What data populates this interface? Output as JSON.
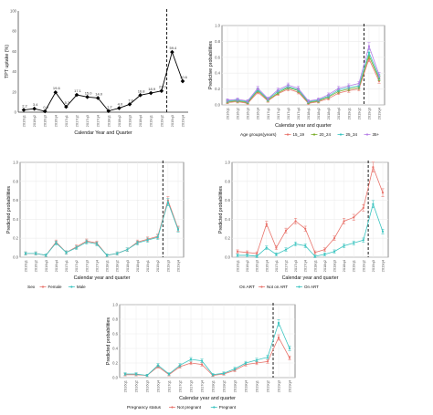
{
  "colors": {
    "black": "#000000",
    "red": "#e8736b",
    "green": "#7aad2a",
    "cyan": "#3ac4c0",
    "purple": "#b57ee6",
    "grid": "#ececec"
  },
  "chart_data": [
    {
      "type": "line",
      "xlabel": "Calendar Year and Quarter",
      "ylabel": "TPT uptake (%)",
      "ylim": [
        0,
        100
      ],
      "yticks": [
        "0",
        "20",
        "40",
        "60",
        "80",
        "100"
      ],
      "categories": [
        "2016q1",
        "2016q2",
        "2016q3",
        "2016q4",
        "2017q1",
        "2017q2",
        "2017q3",
        "2017q4",
        "2018q1",
        "2018q2",
        "2018q3",
        "2018q4",
        "2019q1",
        "2019q2",
        "2019q3",
        "2019q4"
      ],
      "series": [
        {
          "values": [
            2.2,
            3.4,
            0.9,
            19.6,
            5.3,
            17.1,
            15.0,
            14.0,
            1.2,
            4.0,
            7.8,
            16.8,
            18.9,
            21.0,
            59.4,
            30.6
          ],
          "labels": [
            "2.2",
            "3.4",
            "0.9",
            "19.6",
            "5.3",
            "17.1",
            "15.0",
            "14.0",
            "1.2",
            "4.0",
            "7.8",
            "16.8",
            "18.9",
            "21.0",
            "59.4",
            "30.6"
          ]
        }
      ],
      "vline_after": "2019q2",
      "grid": false
    },
    {
      "type": "line",
      "xlabel": "Calendar year and quarter",
      "ylabel": "Predictive probabilities",
      "ylim": [
        0,
        1
      ],
      "yticks": [
        "0.0",
        "0.2",
        "0.4",
        "0.6",
        "0.8",
        "1.0"
      ],
      "categories": [
        "2016q1",
        "2016q2",
        "2016q3",
        "2016q4",
        "2017q1",
        "2017q2",
        "2017q3",
        "2017q4",
        "2018q1",
        "2018q2",
        "2018q3",
        "2018q4",
        "2019q1",
        "2019q2",
        "2019q3",
        "2019q4"
      ],
      "legend_title": "Age groups(years)",
      "legend_position": "bottom",
      "series": [
        {
          "name": "15_19",
          "values": [
            0.03,
            0.04,
            0.02,
            0.16,
            0.05,
            0.14,
            0.2,
            0.16,
            0.02,
            0.04,
            0.08,
            0.15,
            0.18,
            0.2,
            0.58,
            0.3
          ]
        },
        {
          "name": "20_24",
          "values": [
            0.04,
            0.05,
            0.03,
            0.18,
            0.06,
            0.15,
            0.22,
            0.18,
            0.03,
            0.05,
            0.1,
            0.17,
            0.2,
            0.22,
            0.62,
            0.33
          ]
        },
        {
          "name": "25_34",
          "values": [
            0.05,
            0.06,
            0.04,
            0.19,
            0.07,
            0.17,
            0.23,
            0.19,
            0.04,
            0.06,
            0.11,
            0.19,
            0.22,
            0.24,
            0.66,
            0.35
          ]
        },
        {
          "name": "35+",
          "values": [
            0.06,
            0.07,
            0.05,
            0.21,
            0.08,
            0.19,
            0.25,
            0.21,
            0.05,
            0.07,
            0.13,
            0.21,
            0.24,
            0.27,
            0.74,
            0.38
          ]
        }
      ],
      "vline_after": "2019q2",
      "grid": true
    },
    {
      "type": "line",
      "xlabel": "Calendar year and quarter",
      "ylabel": "Predicted probabilities",
      "ylim": [
        0,
        1
      ],
      "yticks": [
        "0.0",
        "0.2",
        "0.4",
        "0.6",
        "0.8",
        "1.0"
      ],
      "categories": [
        "2016q1",
        "2016q2",
        "2016q3",
        "2016q4",
        "2017q1",
        "2017q2",
        "2017q3",
        "2017q4",
        "2018q1",
        "2018q2",
        "2018q3",
        "2018q4",
        "2019q1",
        "2019q2",
        "2019q3",
        "2019q4"
      ],
      "legend_title": "Sex",
      "legend_position": "bottom",
      "series": [
        {
          "name": "Female",
          "values": [
            0.04,
            0.04,
            0.02,
            0.16,
            0.05,
            0.11,
            0.17,
            0.15,
            0.02,
            0.04,
            0.08,
            0.16,
            0.19,
            0.22,
            0.6,
            0.3
          ]
        },
        {
          "name": "Male",
          "values": [
            0.04,
            0.04,
            0.02,
            0.15,
            0.05,
            0.1,
            0.16,
            0.14,
            0.02,
            0.04,
            0.08,
            0.15,
            0.18,
            0.21,
            0.58,
            0.29
          ]
        }
      ],
      "vline_after": "2019q2",
      "grid": true
    },
    {
      "type": "line",
      "xlabel": "Calendar year and quarter",
      "ylabel": "Predicted probabilities",
      "ylim": [
        0,
        1
      ],
      "yticks": [
        "0.0",
        "0.2",
        "0.4",
        "0.6",
        "0.8",
        "1.0"
      ],
      "categories": [
        "2016q1",
        "2016q2",
        "2016q3",
        "2016q4",
        "2017q1",
        "2017q2",
        "2017q3",
        "2017q4",
        "2018q1",
        "2018q2",
        "2018q3",
        "2018q4",
        "2019q1",
        "2019q2",
        "2019q3",
        "2019q4"
      ],
      "legend_title": "On ART",
      "legend_position": "bottom",
      "series": [
        {
          "name": "Not on ART",
          "values": [
            0.06,
            0.05,
            0.04,
            0.35,
            0.1,
            0.28,
            0.38,
            0.3,
            0.05,
            0.08,
            0.2,
            0.38,
            0.42,
            0.52,
            0.95,
            0.68
          ]
        },
        {
          "name": "On ART",
          "values": [
            0.02,
            0.02,
            0.01,
            0.1,
            0.03,
            0.08,
            0.14,
            0.12,
            0.01,
            0.03,
            0.06,
            0.12,
            0.15,
            0.18,
            0.56,
            0.27
          ]
        }
      ],
      "vline_after": "2019q2",
      "grid": true
    },
    {
      "type": "line",
      "xlabel": "Calendar year and quarter",
      "ylabel": "Predicted probabilities",
      "ylim": [
        0,
        1
      ],
      "yticks": [
        "0.0",
        "0.2",
        "0.4",
        "0.6",
        "0.8",
        "1.0"
      ],
      "categories": [
        "2016q1",
        "2016q2",
        "2016q3",
        "2016q4",
        "2017q1",
        "2017q2",
        "2017q3",
        "2017q4",
        "2018q1",
        "2018q2",
        "2018q3",
        "2018q4",
        "2019q1",
        "2019q2",
        "2019q3",
        "2019q4"
      ],
      "legend_title": "Pregnancy status",
      "legend_position": "bottom",
      "series": [
        {
          "name": "Not pregnant",
          "values": [
            0.04,
            0.04,
            0.03,
            0.15,
            0.04,
            0.15,
            0.2,
            0.18,
            0.03,
            0.05,
            0.1,
            0.18,
            0.2,
            0.22,
            0.55,
            0.27
          ]
        },
        {
          "name": "Pregnant",
          "values": [
            0.05,
            0.05,
            0.03,
            0.17,
            0.05,
            0.17,
            0.25,
            0.23,
            0.04,
            0.06,
            0.12,
            0.2,
            0.24,
            0.28,
            0.75,
            0.4
          ]
        }
      ],
      "vline_after": "2019q2",
      "grid": true
    }
  ]
}
